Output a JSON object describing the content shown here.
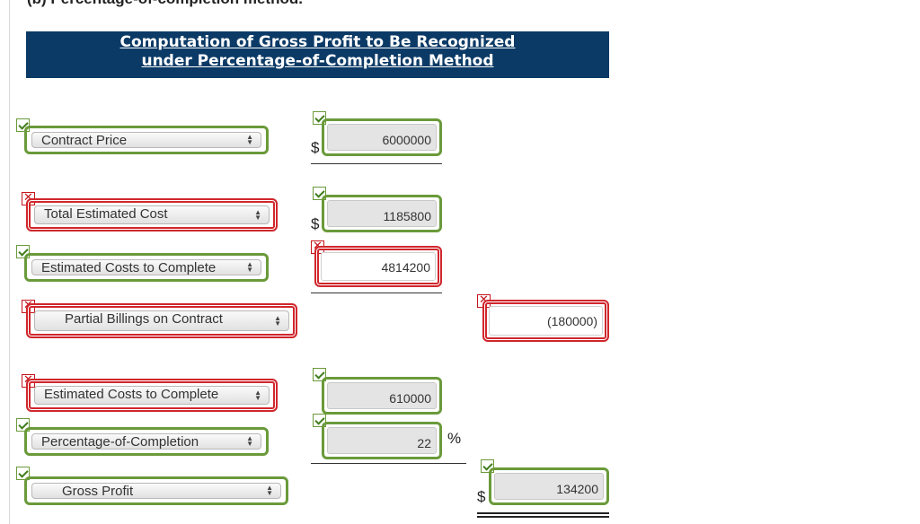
{
  "heading_fragment": "(b) Percentage-of-completion method.",
  "banner": {
    "line1": "Computation of Gross Profit to Be Recognized",
    "line2": "under Percentage-of-Completion Method"
  },
  "currency_symbol": "$",
  "percent_symbol": "%",
  "rows": {
    "contract_price": {
      "label": "Contract Price",
      "status": "correct",
      "value": "6000000",
      "value_status": "correct"
    },
    "total_estimated_cost": {
      "label": "Total Estimated Cost",
      "status": "incorrect",
      "value": "1185800",
      "value_status": "correct"
    },
    "estimated_costs_to_complete_1": {
      "label": "Estimated Costs to Complete",
      "status": "correct",
      "value": "4814200",
      "value_status": "incorrect"
    },
    "partial_billings": {
      "label": "Partial Billings on Contract",
      "status": "incorrect",
      "value": "(180000)",
      "value_status": "incorrect"
    },
    "estimated_costs_to_complete_2": {
      "label": "Estimated Costs to Complete",
      "status": "incorrect",
      "value": "610000",
      "value_status": "correct"
    },
    "percentage_of_completion": {
      "label": "Percentage-of-Completion",
      "status": "correct",
      "value": "22",
      "value_status": "correct"
    },
    "gross_profit": {
      "label": "Gross Profit",
      "status": "correct",
      "value": "134200",
      "value_status": "correct"
    }
  },
  "colors": {
    "banner_bg": "#0c3a66",
    "correct": "#6a9a3a",
    "incorrect": "#d0262c"
  }
}
